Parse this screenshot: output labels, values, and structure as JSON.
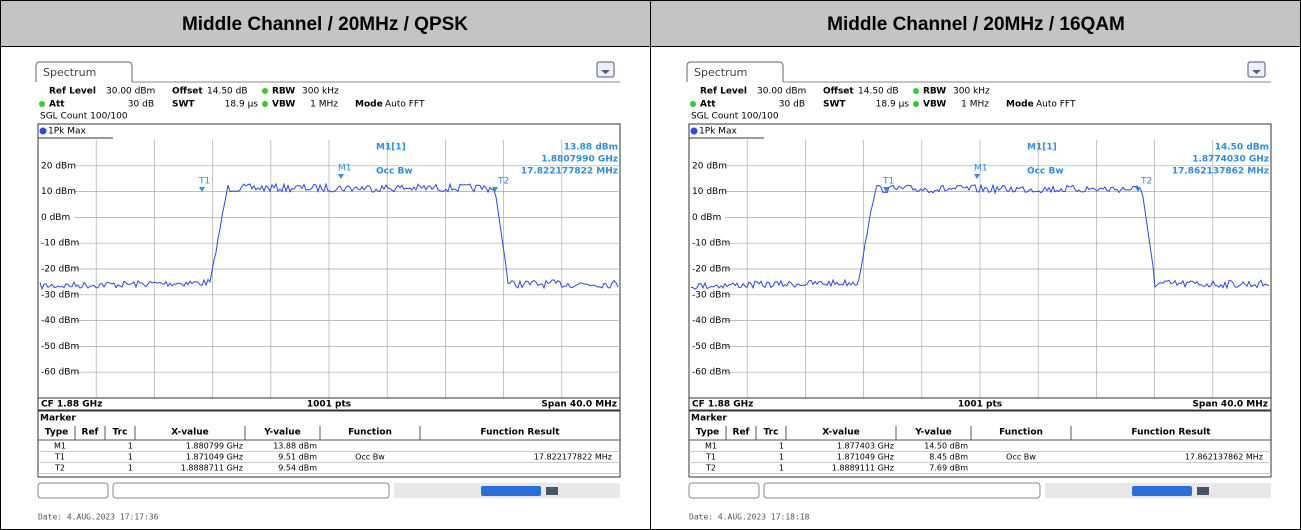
{
  "header": {
    "columns": [
      "Middle Channel / 20MHz / QPSK",
      "Middle Channel / 20MHz / 16QAM"
    ]
  },
  "panels": [
    {
      "tab": "Spectrum",
      "settings": {
        "ref_level_label": "Ref Level",
        "ref_level": "30.00 dBm",
        "offset_label": "Offset",
        "offset": "14.50 dB",
        "rbw_label": "RBW",
        "rbw": "300 kHz",
        "att_label": "Att",
        "att": "30 dB",
        "swt_label": "SWT",
        "swt": "18.9 µs",
        "vbw_label": "VBW",
        "vbw": "1 MHz",
        "mode_label": "Mode",
        "mode": "Auto FFT",
        "count": "SGL Count 100/100"
      },
      "trace": "1Pk Max",
      "y_labels": [
        "20 dBm",
        "10 dBm",
        "0 dBm",
        "-10 dBm",
        "-20 dBm",
        "-30 dBm",
        "-40 dBm",
        "-50 dBm",
        "-60 dBm"
      ],
      "readout": {
        "name": "M1[1]",
        "level": "13.88 dBm",
        "freq": "1.8807990 GHz",
        "occ_label": "Occ Bw",
        "occ": "17.822177822 MHz"
      },
      "marker_labels": [
        "M1",
        "T1",
        "T2"
      ],
      "footer": [
        "CF 1.88 GHz",
        "1001 pts",
        "Span 40.0 MHz"
      ],
      "marker_table": {
        "title": "Marker",
        "columns": [
          "Type",
          "Ref",
          "Trc",
          "X-value",
          "Y-value",
          "Function",
          "Function Result"
        ],
        "rows": [
          {
            "type": "M1",
            "trc": "1",
            "x": "1.880799 GHz",
            "y": "13.88 dBm"
          },
          {
            "type": "T1",
            "trc": "1",
            "x": "1.871049 GHz",
            "y": "9.51 dBm",
            "function": "Occ Bw",
            "result": "17.822177822 MHz"
          },
          {
            "type": "T2",
            "trc": "1",
            "x": "1.8888711 GHz",
            "y": "9.54 dBm"
          }
        ]
      },
      "date": "Date: 4.AUG.2023  17:17:36"
    },
    {
      "tab": "Spectrum",
      "settings": {
        "ref_level_label": "Ref Level",
        "ref_level": "30.00 dBm",
        "offset_label": "Offset",
        "offset": "14.50 dB",
        "rbw_label": "RBW",
        "rbw": "300 kHz",
        "att_label": "Att",
        "att": "30 dB",
        "swt_label": "SWT",
        "swt": "18.9 µs",
        "vbw_label": "VBW",
        "vbw": "1 MHz",
        "mode_label": "Mode",
        "mode": "Auto FFT",
        "count": "SGL Count 100/100"
      },
      "trace": "1Pk Max",
      "y_labels": [
        "20 dBm",
        "10 dBm",
        "0 dBm",
        "-10 dBm",
        "-20 dBm",
        "-30 dBm",
        "-40 dBm",
        "-50 dBm",
        "-60 dBm"
      ],
      "readout": {
        "name": "M1[1]",
        "level": "14.50 dBm",
        "freq": "1.8774030 GHz",
        "occ_label": "Occ Bw",
        "occ": "17.862137862 MHz"
      },
      "marker_labels": [
        "M1",
        "T1",
        "T2"
      ],
      "footer": [
        "CF 1.88 GHz",
        "1001 pts",
        "Span 40.0 MHz"
      ],
      "marker_table": {
        "title": "Marker",
        "columns": [
          "Type",
          "Ref",
          "Trc",
          "X-value",
          "Y-value",
          "Function",
          "Function Result"
        ],
        "rows": [
          {
            "type": "M1",
            "trc": "1",
            "x": "1.877403 GHz",
            "y": "14.50 dBm"
          },
          {
            "type": "T1",
            "trc": "1",
            "x": "1.871049 GHz",
            "y": "8.45 dBm",
            "function": "Occ Bw",
            "result": "17.862137862 MHz"
          },
          {
            "type": "T2",
            "trc": "1",
            "x": "1.8889111 GHz",
            "y": "7.69 dBm"
          }
        ]
      },
      "date": "Date: 4.AUG.2023  17:18:18"
    }
  ]
}
